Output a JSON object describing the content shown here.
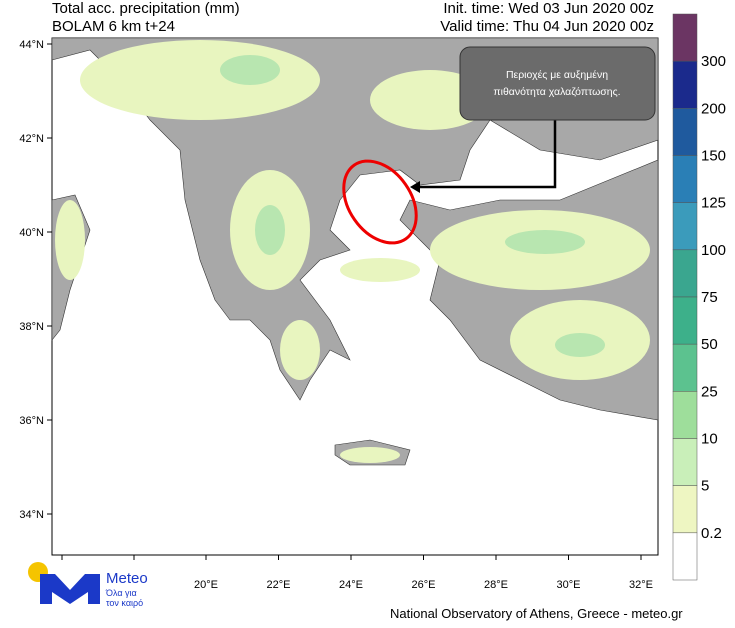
{
  "header": {
    "title": "Total acc. precipitation (mm)",
    "model": "BOLAM 6 km t+24",
    "init_time": "Init. time: Wed 03 Jun 2020 00z",
    "valid_time": "Valid time: Thu 04 Jun 2020 00z"
  },
  "map": {
    "lat_ticks": [
      "44°N",
      "42°N",
      "40°N",
      "38°N",
      "36°N",
      "34°N"
    ],
    "lon_ticks": [
      "20°E",
      "22°E",
      "24°E",
      "26°E",
      "28°E",
      "30°E",
      "32°E"
    ]
  },
  "annotation": {
    "text_line1": "Περιοχές με  αυξημένη",
    "text_line2": "πιθανότητα χαλαζόπτωσης."
  },
  "colorbar": {
    "levels": [
      300,
      200,
      150,
      125,
      100,
      75,
      50,
      25,
      10,
      5,
      0.2
    ],
    "colors": [
      "#6b3563",
      "#1b2a8c",
      "#1f5a9e",
      "#2a7fb6",
      "#3b9bbb",
      "#3aa68f",
      "#3db08a",
      "#5cc28f",
      "#9ede9b",
      "#c9efb9",
      "#eef6c2",
      "#ffffff"
    ]
  },
  "logo": {
    "name": "Meteo",
    "tagline1": "Όλα για",
    "tagline2": "τον καιρό"
  },
  "footer": "National Observatory of Athens, Greece - meteo.gr"
}
